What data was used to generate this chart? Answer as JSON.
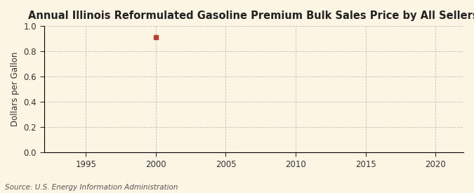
{
  "title": "Annual Illinois Reformulated Gasoline Premium Bulk Sales Price by All Sellers",
  "ylabel": "Dollars per Gallon",
  "source": "Source: U.S. Energy Information Administration",
  "xlim": [
    1992,
    2022
  ],
  "ylim": [
    0.0,
    1.0
  ],
  "xticks": [
    1995,
    2000,
    2005,
    2010,
    2015,
    2020
  ],
  "yticks": [
    0.0,
    0.2,
    0.4,
    0.6,
    0.8,
    1.0
  ],
  "data_x": [
    2000
  ],
  "data_y": [
    0.912
  ],
  "marker_color": "#c0392b",
  "marker_size": 4,
  "background_color": "#fdf5e4",
  "plot_bg_color": "#fdf5e4",
  "grid_color": "#aaaaaa",
  "spine_color": "#000000",
  "title_fontsize": 10.5,
  "label_fontsize": 8.5,
  "tick_fontsize": 8.5,
  "source_fontsize": 7.5
}
